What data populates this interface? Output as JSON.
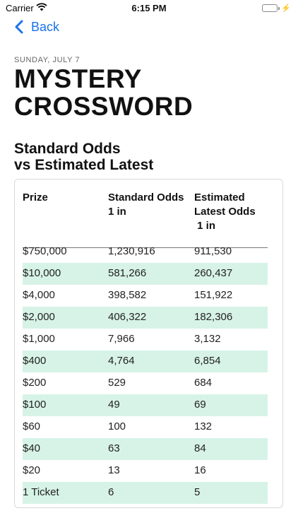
{
  "status_bar": {
    "carrier": "Carrier",
    "time": "6:15 PM",
    "battery_level": 1.0,
    "battery_color": "#4cd964"
  },
  "nav": {
    "back_label": "Back",
    "accent": "#1a73e8"
  },
  "game": {
    "date": "SUNDAY, JULY 7",
    "title": "MYSTERY\nCROSSWORD"
  },
  "section": {
    "title": "Standard Odds\nvs Estimated Latest"
  },
  "table": {
    "headers": [
      "Prize",
      "Standard Odds\n1 in",
      "Estimated\nLatest Odds\n 1 in"
    ],
    "stripe_color": "#d7f3e7",
    "rows": [
      {
        "prize": "$750,000",
        "standard": "1,230,916",
        "estimated": "911,530"
      },
      {
        "prize": "$10,000",
        "standard": "581,266",
        "estimated": "260,437"
      },
      {
        "prize": "$4,000",
        "standard": "398,582",
        "estimated": "151,922"
      },
      {
        "prize": "$2,000",
        "standard": "406,322",
        "estimated": "182,306"
      },
      {
        "prize": "$1,000",
        "standard": "7,966",
        "estimated": "3,132"
      },
      {
        "prize": "$400",
        "standard": "4,764",
        "estimated": "6,854"
      },
      {
        "prize": "$200",
        "standard": "529",
        "estimated": "684"
      },
      {
        "prize": "$100",
        "standard": "49",
        "estimated": "69"
      },
      {
        "prize": "$60",
        "standard": "100",
        "estimated": "132"
      },
      {
        "prize": "$40",
        "standard": "63",
        "estimated": "84"
      },
      {
        "prize": "$20",
        "standard": "13",
        "estimated": "16"
      },
      {
        "prize": "1 Ticket",
        "standard": "6",
        "estimated": "5"
      }
    ]
  }
}
